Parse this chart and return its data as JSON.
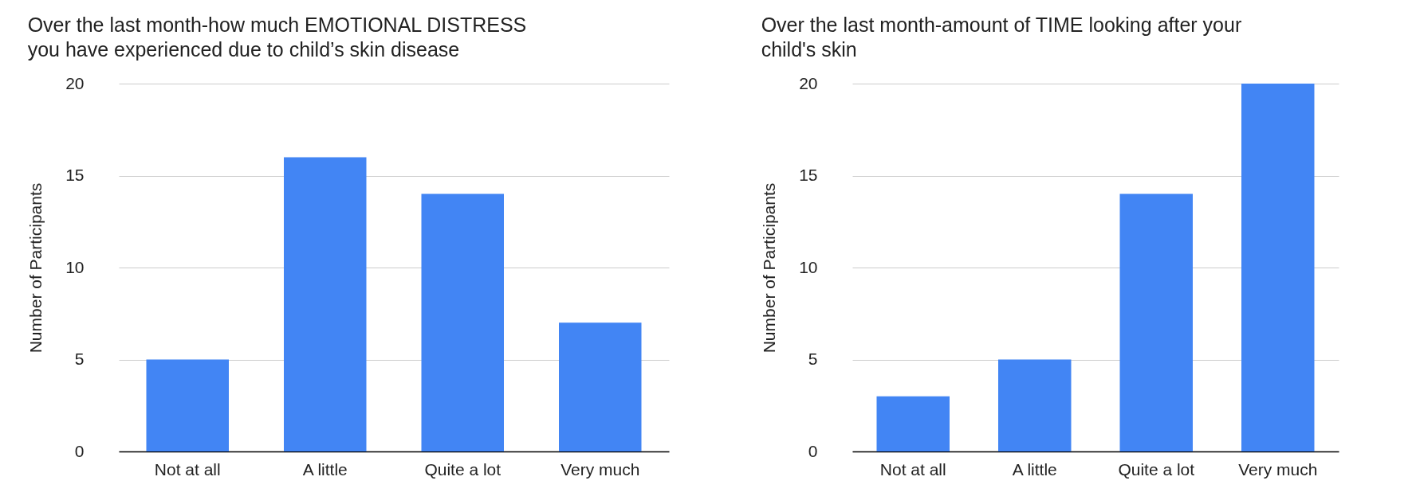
{
  "chart_data": [
    {
      "type": "bar",
      "title": "Over the last month-how much EMOTIONAL DISTRESS\nyou have experienced due to child’s skin disease",
      "ylabel": "Number of Participants",
      "categories": [
        "Not at all",
        "A little",
        "Quite a lot",
        "Very much"
      ],
      "values": [
        5,
        16,
        14,
        7
      ],
      "color": "#4285f4",
      "ylim": [
        0,
        20
      ],
      "yticks": [
        0,
        5,
        10,
        15,
        20
      ],
      "grid": "y"
    },
    {
      "type": "bar",
      "title": "Over the last month-amount of TIME looking after your\nchild's skin",
      "ylabel": "Number of Participants",
      "categories": [
        "Not at all",
        "A little",
        "Quite a lot",
        "Very much"
      ],
      "values": [
        3,
        5,
        14,
        20
      ],
      "color": "#4285f4",
      "ylim": [
        0,
        20
      ],
      "yticks": [
        0,
        5,
        10,
        15,
        20
      ],
      "grid": "y"
    }
  ]
}
